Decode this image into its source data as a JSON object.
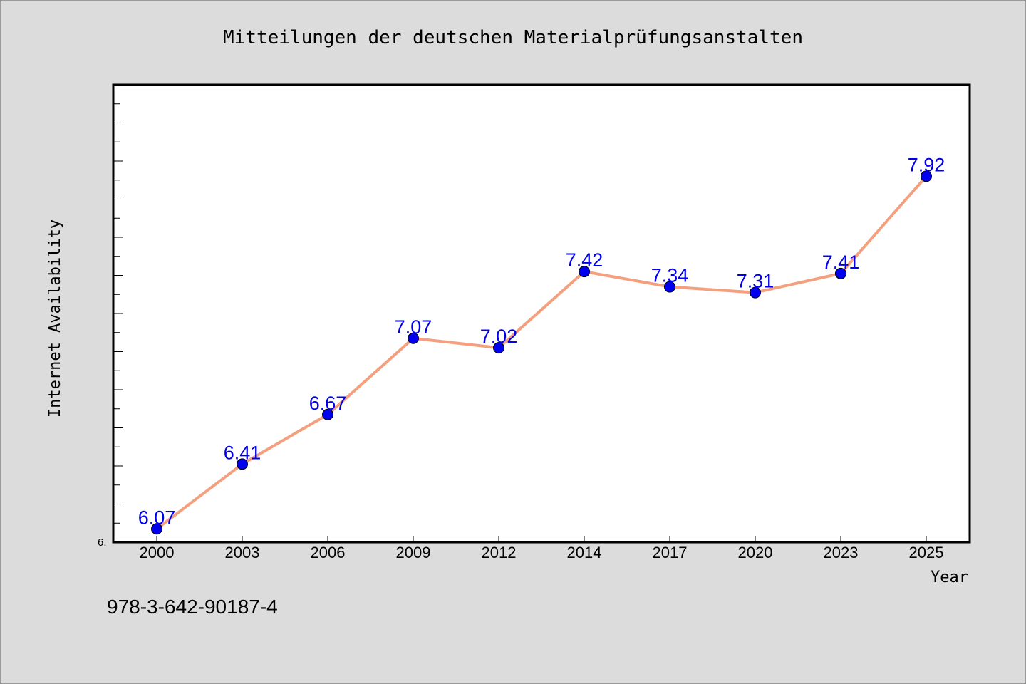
{
  "chart_data": {
    "type": "line",
    "title": "Mitteilungen der deutschen Materialprüfungsanstalten",
    "xlabel": "Year",
    "ylabel": "Internet Availability",
    "categories": [
      "2000",
      "2003",
      "2006",
      "2009",
      "2012",
      "2014",
      "2017",
      "2020",
      "2023",
      "2025"
    ],
    "series": [
      {
        "values": [
          6.07,
          6.41,
          6.67,
          7.07,
          7.02,
          7.42,
          7.34,
          7.31,
          7.41,
          7.92
        ]
      }
    ],
    "ylim": [
      6.0,
      8.4
    ],
    "y_tick_label": "6.",
    "grid": false,
    "line_color": "#f4a07f",
    "marker_color": "#0000ee",
    "label_color": "#0000ee"
  },
  "footer": {
    "isbn": "978-3-642-90187-4"
  }
}
